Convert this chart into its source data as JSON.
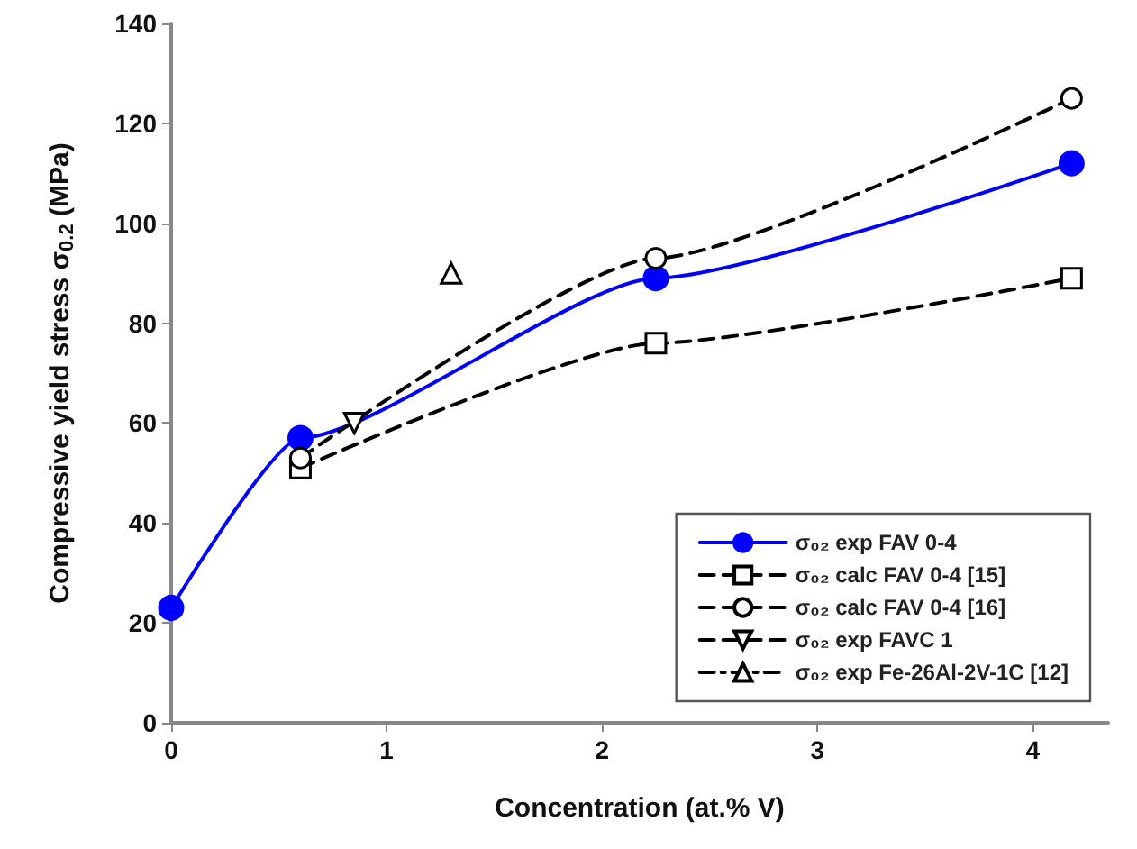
{
  "chart_data": {
    "type": "line",
    "xlabel": "Concentration (at.% V)",
    "ylabel": "Compressive yield stress σ$_{0.2}$ (MPa)",
    "xlim": [
      0,
      4.35
    ],
    "xticks": [
      0,
      1,
      2,
      3,
      4
    ],
    "ylim": [
      0,
      140
    ],
    "yticks": [
      0,
      20,
      40,
      60,
      80,
      100,
      120,
      140
    ],
    "grid": false,
    "legend": "bottom right",
    "series": [
      {
        "name": "σ₀₂ exp FAV 0-4",
        "color": "#0000ff",
        "x": [
          0,
          0.6,
          2.25,
          4.18
        ],
        "values": [
          23,
          57,
          89,
          112
        ],
        "marker": "circle",
        "line_style": "solid"
      },
      {
        "name": "σ₀₂ calc FAV 0-4 [15]",
        "color": "#000000",
        "x": [
          0.6,
          2.25,
          4.18
        ],
        "values": [
          51,
          76,
          89
        ],
        "marker": "square",
        "line_style": "dashed"
      },
      {
        "name": "σ₀₂ calc FAV 0-4 [16]",
        "color": "#000000",
        "x": [
          0.6,
          2.25,
          4.18
        ],
        "values": [
          53,
          93,
          125
        ],
        "marker": "circle",
        "line_style": "dashed"
      },
      {
        "name": "σ₀₂ exp FAVC 1",
        "color": "#000000",
        "x": [
          0.85
        ],
        "values": [
          60
        ],
        "marker": "triangle-down",
        "line_style": "dashed"
      },
      {
        "name": "σ₀₂ exp Fe-26Al-2V-1C [12]",
        "color": "#000000",
        "x": [
          1.3
        ],
        "values": [
          90
        ],
        "marker": "triangle",
        "line_style": "dotted"
      }
    ]
  }
}
